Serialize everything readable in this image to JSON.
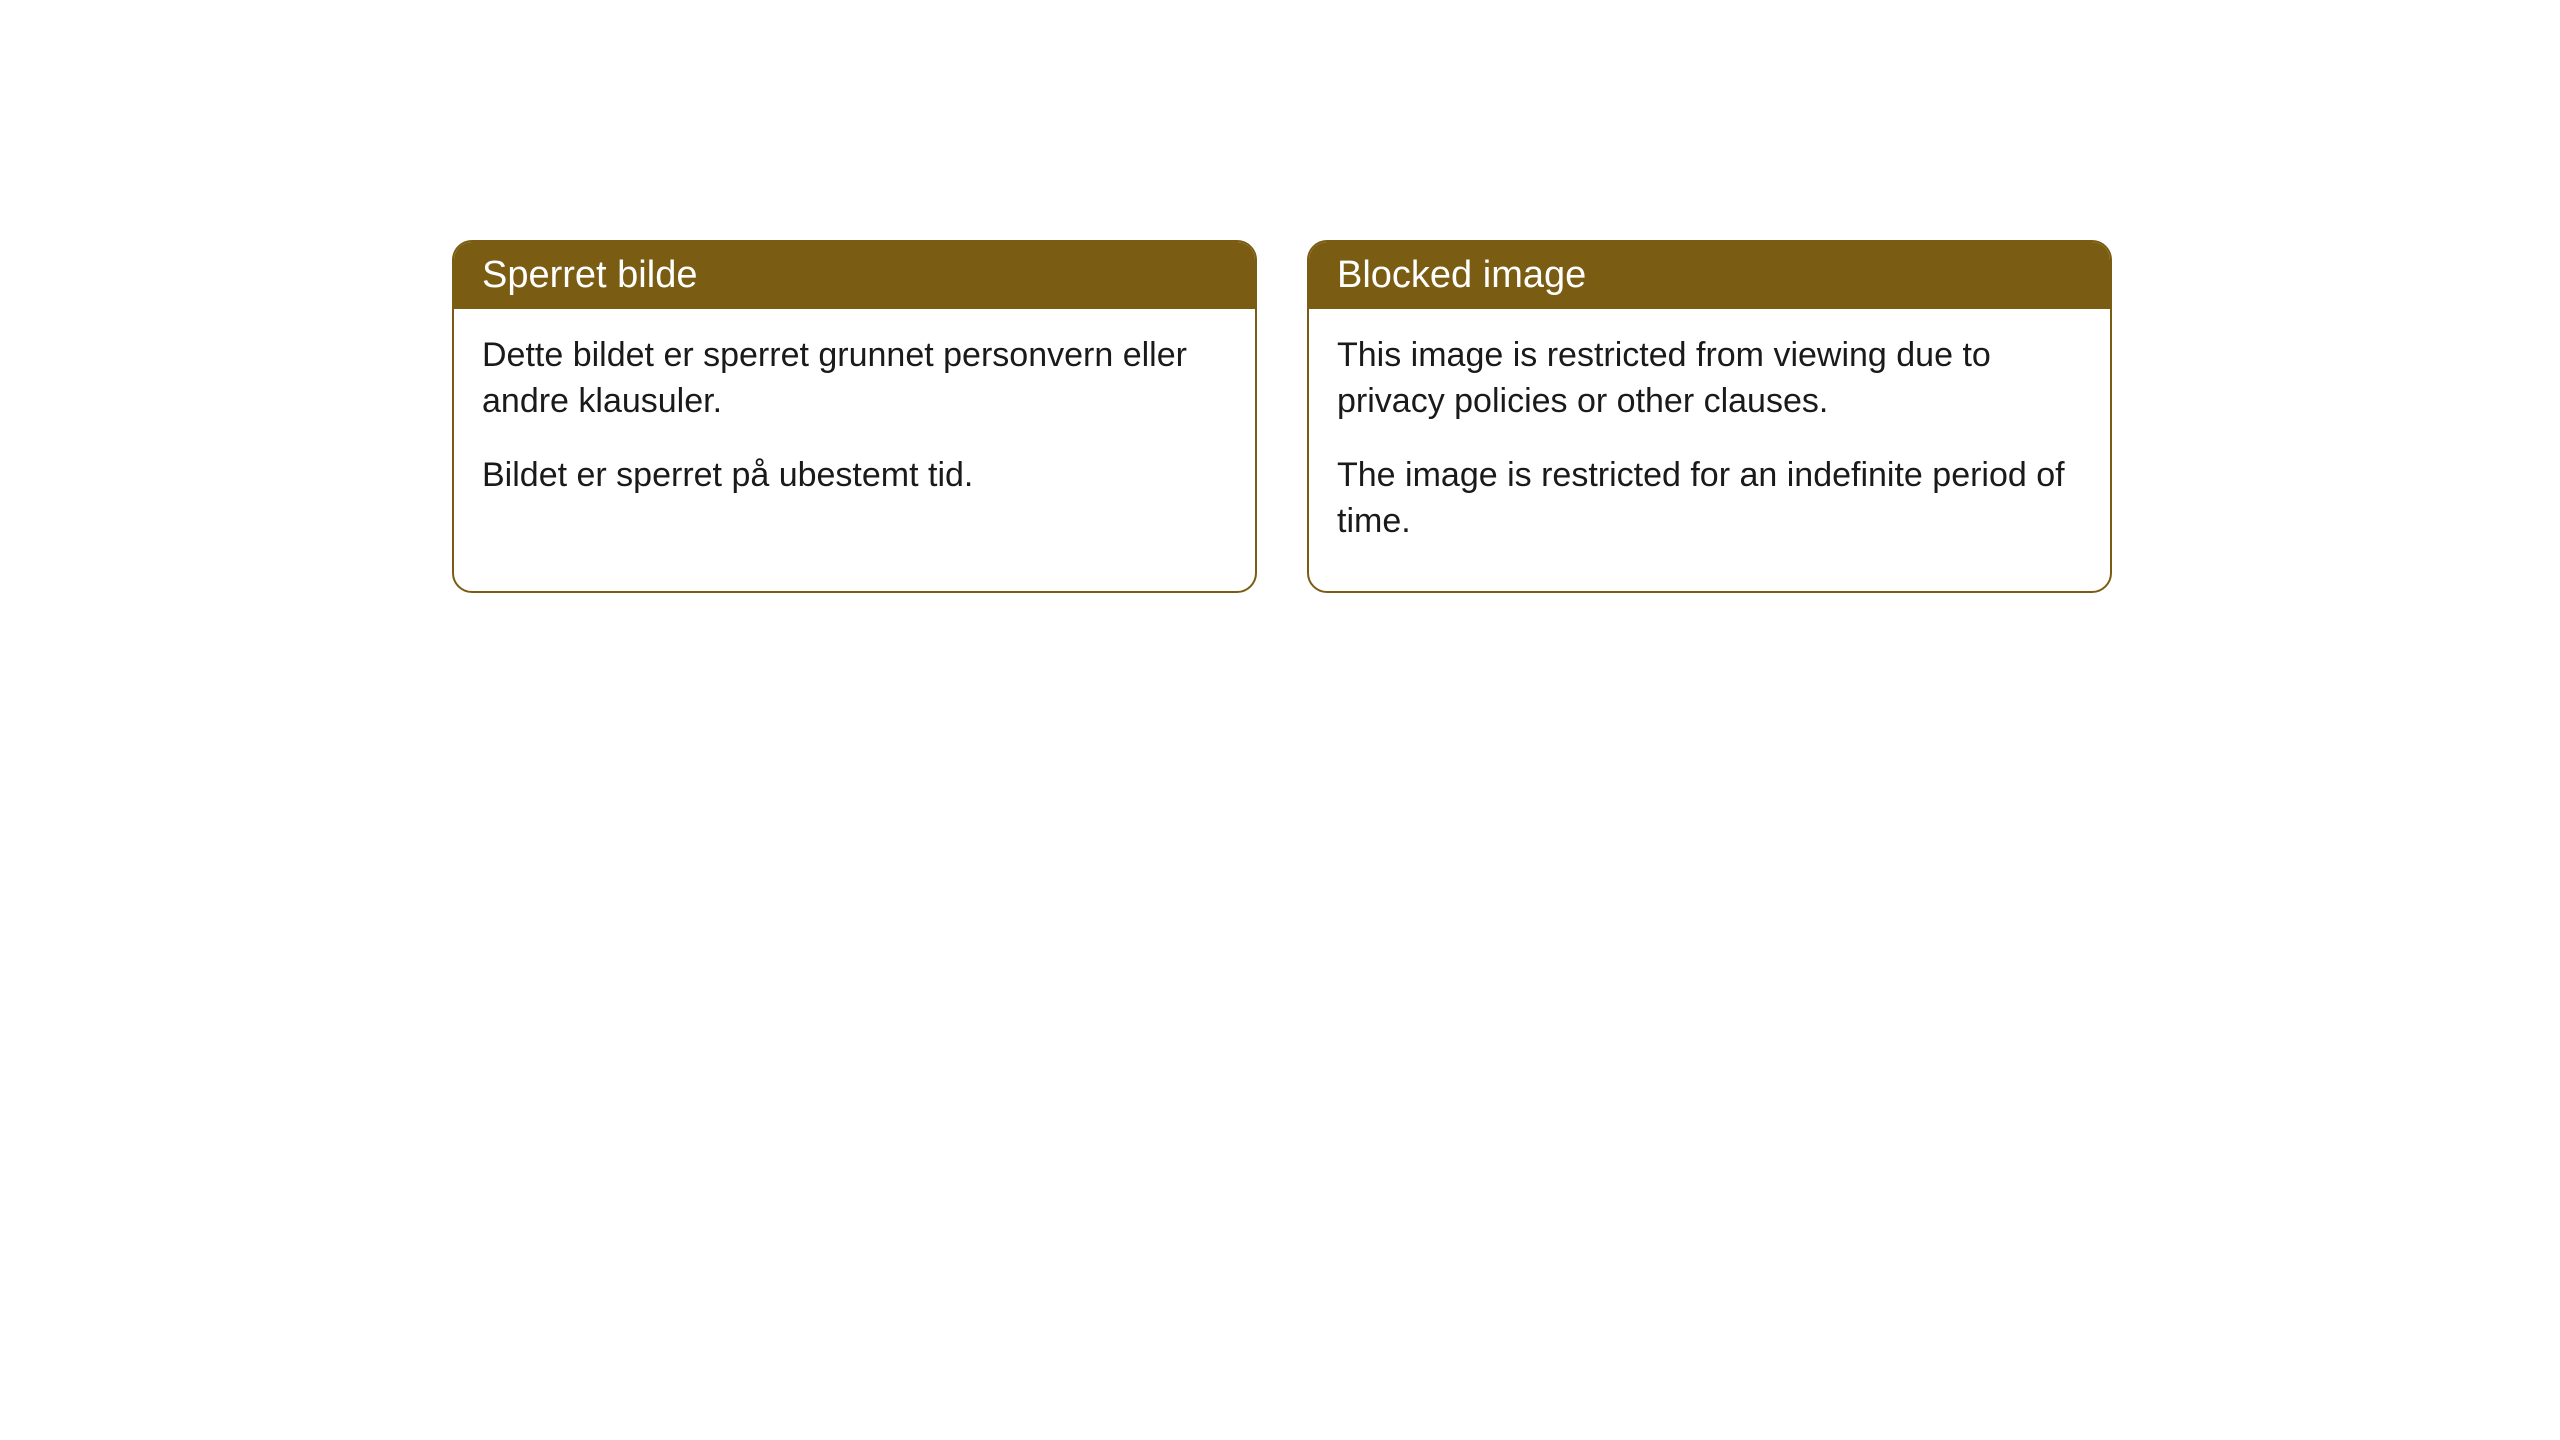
{
  "cards": [
    {
      "title": "Sperret bilde",
      "paragraph1": "Dette bildet er sperret grunnet personvern eller andre klausuler.",
      "paragraph2": "Bildet er sperret på ubestemt tid."
    },
    {
      "title": "Blocked image",
      "paragraph1": "This image is restricted from viewing due to privacy policies or other clauses.",
      "paragraph2": "The image is restricted for an indefinite period of time."
    }
  ],
  "style": {
    "header_background": "#7a5c12",
    "header_text_color": "#ffffff",
    "border_color": "#7a5c12",
    "body_background": "#ffffff",
    "body_text_color": "#1a1a1a",
    "border_radius": 20,
    "title_fontsize": 38,
    "body_fontsize": 34
  }
}
